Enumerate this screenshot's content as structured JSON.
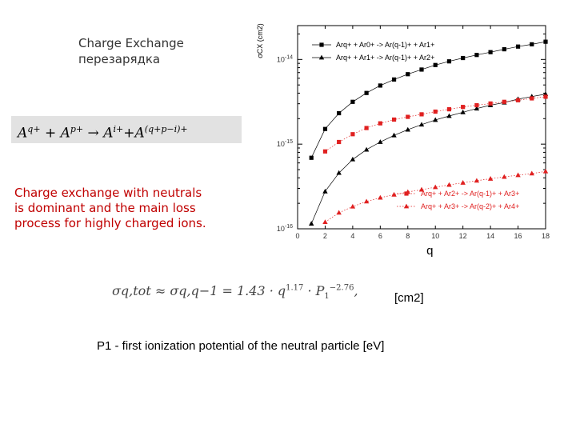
{
  "slide": {
    "title_line1": "Charge Exchange",
    "title_line2": "перезарядка",
    "reaction": {
      "A1": "A",
      "q1": "q+",
      "plus1": " + ",
      "A2": "A",
      "p1": "p+",
      "arrow": " → ",
      "A3": "A",
      "i3": "i+",
      "plus2": "+",
      "A4": "A",
      "exp4": "(q+p−i)+"
    },
    "note_line1": "Charge exchange with neutrals",
    "note_line2": "is dominant and the main loss",
    "note_line3": "process for highly charged ions.",
    "formula": {
      "lhs": "σq,tot ≈ σq,q−1 = 1.43 · q",
      "q_exp": "1.17",
      "mid": " · P",
      "p_sub": "1",
      "p_exp": "−2.76",
      "tail": ","
    },
    "units": "[cm2]",
    "p1_note": "P1 - first ionization potential of the neutral particle [eV]"
  },
  "colors": {
    "black_series": "#000000",
    "red_series": "#e02020",
    "note_text": "#c00000"
  },
  "chart_data": {
    "type": "scatter",
    "xlabel": "q",
    "ylabel": "σCX (cm2)",
    "xlim": [
      0,
      18
    ],
    "ylim_log10": [
      -16,
      -13.6
    ],
    "log_y": true,
    "x_ticks": [
      0,
      2,
      4,
      6,
      8,
      10,
      12,
      14,
      16,
      18
    ],
    "y_tick_labels": [
      "10-14",
      "10-15",
      "10-16"
    ],
    "y_tick_values": [
      1e-14,
      1e-15,
      1e-16
    ],
    "legend_top": [
      {
        "label": "Arq+ + Ar0+ -> Ar(q-1)+ + Ar1+",
        "marker": "square",
        "color": "#000000"
      },
      {
        "label": "Arq+ + Ar1+ -> Ar(q-1)+ + Ar2+",
        "marker": "triangle",
        "color": "#000000"
      }
    ],
    "legend_bottom": [
      {
        "label": "Arq+ + Ar2+ -> Ar(q-1)+ + Ar3+",
        "marker": "square",
        "color": "#e02020"
      },
      {
        "label": "Arq+ + Ar3+ -> Ar(q-2)+ + Ar4+",
        "marker": "triangle",
        "color": "#e02020"
      }
    ],
    "series": [
      {
        "x": [
          1,
          2,
          3,
          4,
          5,
          6,
          7,
          8,
          9,
          10,
          11,
          12,
          13,
          14,
          15,
          16,
          17,
          18
        ],
        "values": [
          6.9e-16,
          1.51e-15,
          2.32e-15,
          3.16e-15,
          4.02e-15,
          4.92e-15,
          5.8e-15,
          6.7e-15,
          7.6e-15,
          8.6e-15,
          9.5e-15,
          1.04e-14,
          1.13e-14,
          1.22e-14,
          1.32e-14,
          1.42e-14,
          1.51e-14,
          1.62e-14
        ],
        "marker": "square",
        "color": "#000000",
        "line": "solid"
      },
      {
        "x": [
          1,
          2,
          3,
          4,
          5,
          6,
          7,
          8,
          9,
          10,
          11,
          12,
          13,
          14,
          15,
          16,
          17,
          18
        ],
        "values": [
          1.15e-16,
          2.76e-16,
          4.57e-16,
          6.6e-16,
          8.6e-16,
          1.06e-15,
          1.27e-15,
          1.48e-15,
          1.7e-15,
          1.93e-15,
          2.15e-15,
          2.38e-15,
          2.63e-15,
          2.88e-15,
          3.1e-15,
          3.4e-15,
          3.65e-15,
          3.9e-15
        ],
        "marker": "triangle",
        "color": "#000000",
        "line": "solid"
      },
      {
        "x": [
          2,
          3,
          4,
          5,
          6,
          7,
          8,
          9,
          10,
          11,
          12,
          13,
          14,
          15,
          16,
          17,
          18
        ],
        "values": [
          8.2e-16,
          1.06e-15,
          1.31e-15,
          1.55e-15,
          1.76e-15,
          1.95e-15,
          2.1e-15,
          2.25e-15,
          2.42e-15,
          2.58e-15,
          2.75e-15,
          2.88e-15,
          3.02e-15,
          3.16e-15,
          3.3e-15,
          3.47e-15,
          3.63e-15
        ],
        "marker": "square",
        "color": "#e02020",
        "line": "dotted"
      },
      {
        "x": [
          2,
          3,
          4,
          5,
          6,
          7,
          8,
          9,
          10,
          11,
          12,
          13,
          14,
          15,
          16,
          17,
          18
        ],
        "values": [
          1.2e-16,
          1.55e-16,
          1.83e-16,
          2.1e-16,
          2.33e-16,
          2.53e-16,
          2.72e-16,
          2.9e-16,
          3.1e-16,
          3.3e-16,
          3.5e-16,
          3.7e-16,
          3.9e-16,
          4.1e-16,
          4.3e-16,
          4.5e-16,
          4.76e-16
        ],
        "marker": "triangle",
        "color": "#e02020",
        "line": "dotted"
      }
    ]
  }
}
